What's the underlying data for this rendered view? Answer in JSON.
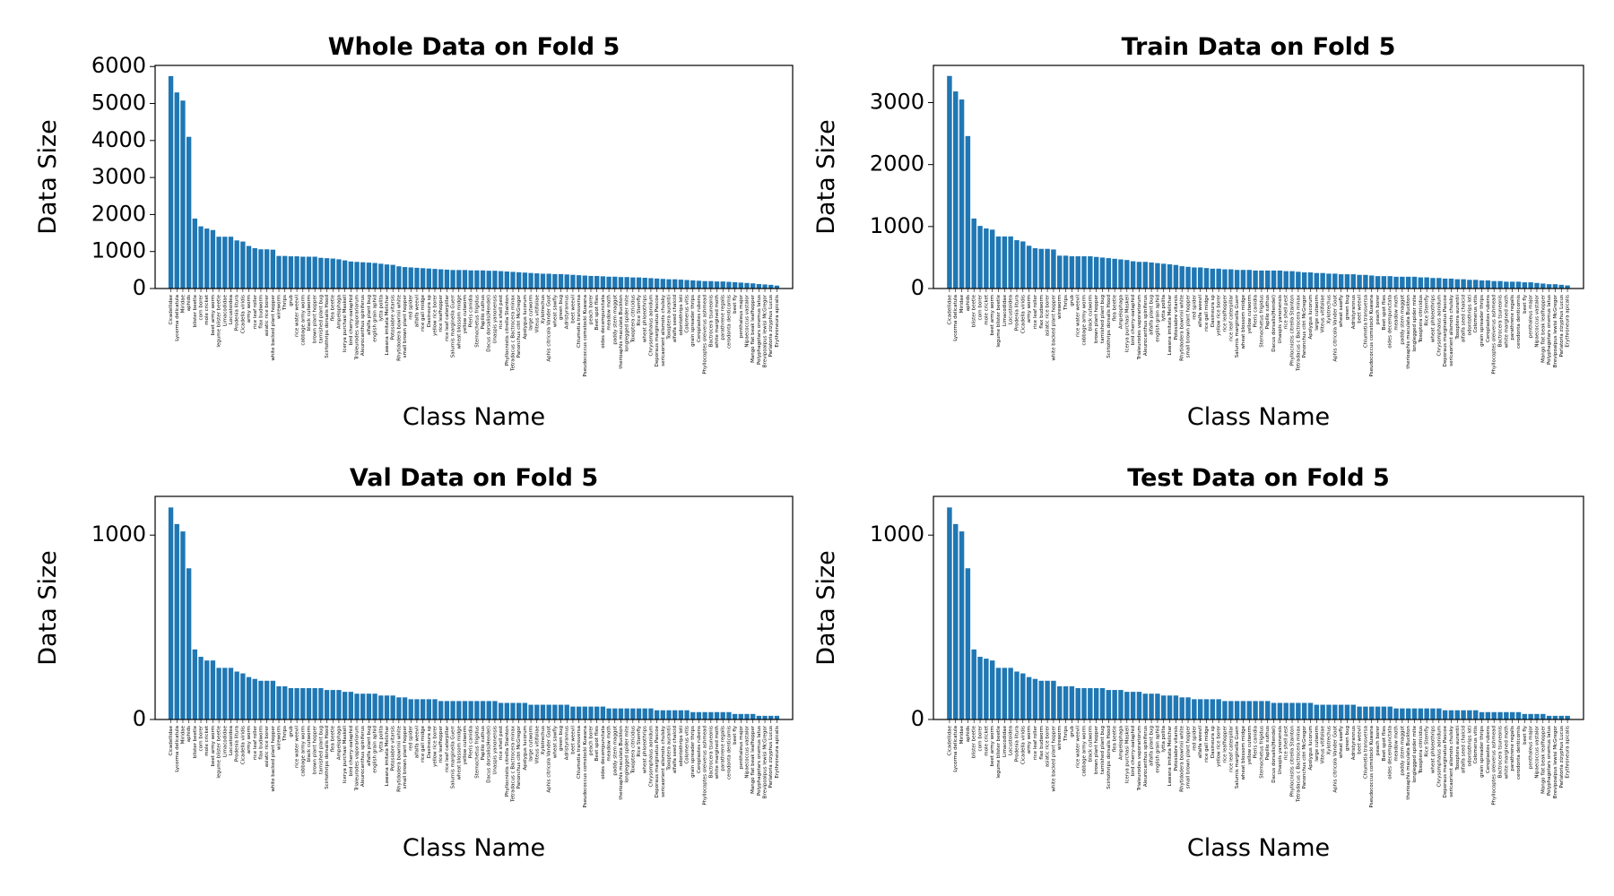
{
  "chart_data": [
    {
      "type": "bar",
      "title": "Whole Data on Fold 5",
      "x_label": "Class Name",
      "y_label": "Data Size",
      "color": "#1f77b4",
      "categories": [
        "Cicadellidae",
        "Lycorma delicatula",
        "Miridae",
        "aphids",
        "blister beetle",
        "corn borer",
        "mole cricket",
        "beet army worm",
        "legume blister beetle",
        "Limacodidae",
        "Locustoidea",
        "Prodenia litura",
        "Cicadella viridis",
        "army worm",
        "rice leaf roller",
        "flax budworm",
        "asiatic rice borer",
        "white backed plant hopper",
        "wireworm",
        "Thrips",
        "grub",
        "rice water weevil",
        "cabbage army worm",
        "black cutworm",
        "brown plant hopper",
        "tarnished plant bug",
        "Scirtothrips dorsalis Hood",
        "flea beetle",
        "Ampelophaga",
        "Icerya purchasi Maskell",
        "bird cherry-oataphid",
        "Trialeurodes vaporariorum",
        "Aleurocanthus spiniferus",
        "alfalfa plant bug",
        "english grain aphid",
        "lytta polita",
        "Lawana imitata Melichar",
        "Potosiabre vitarsis",
        "Rhytidodera bowrinii white",
        "small brown plant hopper",
        "red spider",
        "alfalfa weevil",
        "rice gall midge",
        "Dasineura sp",
        "yellow rice borer",
        "rice leafhopper",
        "rice leaf caterpillar",
        "Salurnis marginella Guerr",
        "wheat blossom midge",
        "yellow cutworm",
        "Pieris canidia",
        "Sternochetus frigidus",
        "Papilio xuthus",
        "Dacus dorsalis(Hendel)",
        "Unaspis yanonensis",
        "rice shell pest",
        "Phyllocnistis citrella Stainton",
        "Tetradacus c Bactrocera minax",
        "Panonchus citri McGregor",
        "Apolygus lucorum",
        "large cutworm",
        "Viteus vitifoliae",
        "Xylotrechus",
        "Aphis citricola Vander Goot",
        "wheat sawfly",
        "green bug",
        "Adristyrannus",
        "beet weevil",
        "Chlumetia transversa",
        "Pseudococcus comstocki Kuwana",
        "peach borer",
        "Beet spot flies",
        "oides decempunctata",
        "meadow moth",
        "paddy stem maggot",
        "therioaphis maculata Buckton",
        "longlegged spider mite",
        "Toxoptera citricidus",
        "Rice Stemfly",
        "wheat phloeothrips",
        "Chrysomphalus aonidum",
        "Deporaus marginatus Pascoe",
        "sericaorient alismots chulsky",
        "Toxoptera aurantii",
        "alfalfa seed chalcid",
        "odontothrips loti",
        "Colomerus vitis",
        "grain spreader thrips",
        "Ceroplastes rubens",
        "Phyllocoptes oleiverus ashmead",
        "Bactrocera tsuneonis",
        "white margined moth",
        "parathrene regalis",
        "cerodonta denticornis",
        "beet fly",
        "penthaleus major",
        "Nipaecoccus vastalor",
        "Mango flat beak leafhopper",
        "Polyphagotars onemus latus",
        "Brevipoalpus lewisi McGregor",
        "Parlatoria zizyphus Lucus",
        "Erythroneura apicalis"
      ],
      "values": [
        5740,
        5300,
        5080,
        4100,
        1890,
        1680,
        1620,
        1580,
        1400,
        1400,
        1400,
        1300,
        1270,
        1150,
        1090,
        1060,
        1060,
        1050,
        880,
        880,
        870,
        870,
        860,
        860,
        860,
        830,
        820,
        810,
        790,
        760,
        730,
        720,
        710,
        700,
        690,
        670,
        650,
        640,
        600,
        580,
        570,
        560,
        550,
        540,
        530,
        520,
        510,
        500,
        500,
        500,
        490,
        490,
        490,
        480,
        480,
        470,
        460,
        450,
        440,
        430,
        420,
        410,
        400,
        400,
        390,
        390,
        380,
        370,
        360,
        350,
        340,
        340,
        330,
        320,
        320,
        310,
        310,
        300,
        300,
        290,
        280,
        270,
        260,
        250,
        250,
        240,
        230,
        220,
        210,
        200,
        200,
        190,
        190,
        180,
        170,
        160,
        150,
        140,
        120,
        110,
        100,
        80
      ],
      "ylim": [
        0,
        6030
      ],
      "yticks": [
        0,
        1000,
        2000,
        3000,
        4000,
        5000,
        6000
      ]
    },
    {
      "type": "bar",
      "title": "Train Data on Fold 5",
      "x_label": "Class Name",
      "y_label": "Data Size",
      "color": "#1f77b4",
      "categories": [
        "Cicadellidae",
        "Lycorma delicatula",
        "Miridae",
        "aphids",
        "blister beetle",
        "corn borer",
        "mole cricket",
        "beet army worm",
        "legume blister beetle",
        "Limacodidae",
        "Locustoidea",
        "Prodenia litura",
        "Cicadella viridis",
        "army worm",
        "rice leaf roller",
        "flax budworm",
        "asiatic rice borer",
        "white backed plant hopper",
        "wireworm",
        "Thrips",
        "grub",
        "rice water weevil",
        "cabbage army worm",
        "black cutworm",
        "brown plant hopper",
        "tarnished plant bug",
        "Scirtothrips dorsalis Hood",
        "flea beetle",
        "Ampelophaga",
        "Icerya purchasi Maskell",
        "bird cherry-oataphid",
        "Trialeurodes vaporariorum",
        "Aleurocanthus spiniferus",
        "alfalfa plant bug",
        "english grain aphid",
        "lytta polita",
        "Lawana imitata Melichar",
        "Potosiabre vitarsis",
        "Rhytidodera bowrinii white",
        "small brown plant hopper",
        "red spider",
        "alfalfa weevil",
        "rice gall midge",
        "Dasineura sp",
        "yellow rice borer",
        "rice leafhopper",
        "rice leaf caterpillar",
        "Salurnis marginella Guerr",
        "wheat blossom midge",
        "yellow cutworm",
        "Pieris canidia",
        "Sternochetus frigidus",
        "Papilio xuthus",
        "Dacus dorsalis(Hendel)",
        "Unaspis yanonensis",
        "rice shell pest",
        "Phyllocnistis citrella Stainton",
        "Tetradacus c Bactrocera minax",
        "Panonchus citri McGregor",
        "Apolygus lucorum",
        "large cutworm",
        "Viteus vitifoliae",
        "Xylotrechus",
        "Aphis citricola Vander Goot",
        "wheat sawfly",
        "green bug",
        "Adristyrannus",
        "beet weevil",
        "Chlumetia transversa",
        "Pseudococcus comstocki Kuwana",
        "peach borer",
        "Beet spot flies",
        "oides decempunctata",
        "meadow moth",
        "paddy stem maggot",
        "therioaphis maculata Buckton",
        "longlegged spider mite",
        "Toxoptera citricidus",
        "Rice Stemfly",
        "wheat phloeothrips",
        "Chrysomphalus aonidum",
        "Deporaus marginatus Pascoe",
        "sericaorient alismots chulsky",
        "Toxoptera aurantii",
        "alfalfa seed chalcid",
        "odontothrips loti",
        "Colomerus vitis",
        "grain spreader thrips",
        "Ceroplastes rubens",
        "Phyllocoptes oleiverus ashmead",
        "Bactrocera tsuneonis",
        "white margined moth",
        "parathrene regalis",
        "cerodonta denticornis",
        "beet fly",
        "penthaleus major",
        "Nipaecoccus vastalor",
        "Mango flat beak leafhopper",
        "Polyphagotars onemus latus",
        "Brevipoalpus lewisi McGregor",
        "Parlatoria zizyphus Lucus",
        "Erythroneura apicalis"
      ],
      "values": [
        3430,
        3180,
        3050,
        2460,
        1130,
        1010,
        970,
        950,
        840,
        840,
        840,
        780,
        760,
        690,
        650,
        640,
        640,
        630,
        530,
        530,
        520,
        520,
        520,
        520,
        510,
        500,
        490,
        480,
        470,
        460,
        440,
        430,
        430,
        420,
        410,
        400,
        390,
        380,
        360,
        350,
        340,
        340,
        330,
        320,
        320,
        310,
        310,
        300,
        300,
        300,
        290,
        290,
        290,
        290,
        290,
        280,
        280,
        270,
        260,
        260,
        250,
        250,
        240,
        240,
        230,
        230,
        230,
        220,
        220,
        210,
        200,
        200,
        200,
        190,
        190,
        190,
        190,
        180,
        180,
        170,
        170,
        160,
        160,
        150,
        150,
        140,
        140,
        130,
        130,
        120,
        120,
        110,
        110,
        110,
        100,
        100,
        90,
        80,
        70,
        70,
        60,
        50
      ],
      "ylim": [
        0,
        3600
      ],
      "yticks": [
        0,
        1000,
        2000,
        3000
      ]
    },
    {
      "type": "bar",
      "title": "Val Data on Fold 5",
      "x_label": "Class Name",
      "y_label": "Data Size",
      "color": "#1f77b4",
      "categories": [
        "Cicadellidae",
        "Lycorma delicatula",
        "Miridae",
        "aphids",
        "blister beetle",
        "corn borer",
        "mole cricket",
        "beet army worm",
        "legume blister beetle",
        "Limacodidae",
        "Locustoidea",
        "Prodenia litura",
        "Cicadella viridis",
        "army worm",
        "rice leaf roller",
        "flax budworm",
        "asiatic rice borer",
        "white backed plant hopper",
        "wireworm",
        "Thrips",
        "grub",
        "rice water weevil",
        "cabbage army worm",
        "black cutworm",
        "brown plant hopper",
        "tarnished plant bug",
        "Scirtothrips dorsalis Hood",
        "flea beetle",
        "Ampelophaga",
        "Icerya purchasi Maskell",
        "bird cherry-oataphid",
        "Trialeurodes vaporariorum",
        "Aleurocanthus spiniferus",
        "alfalfa plant bug",
        "english grain aphid",
        "lytta polita",
        "Lawana imitata Melichar",
        "Potosiabre vitarsis",
        "Rhytidodera bowrinii white",
        "small brown plant hopper",
        "red spider",
        "alfalfa weevil",
        "rice gall midge",
        "Dasineura sp",
        "yellow rice borer",
        "rice leafhopper",
        "rice leaf caterpillar",
        "Salurnis marginella Guerr",
        "wheat blossom midge",
        "yellow cutworm",
        "Pieris canidia",
        "Sternochetus frigidus",
        "Papilio xuthus",
        "Dacus dorsalis(Hendel)",
        "Unaspis yanonensis",
        "rice shell pest",
        "Phyllocnistis citrella Stainton",
        "Tetradacus c Bactrocera minax",
        "Panonchus citri McGregor",
        "Apolygus lucorum",
        "large cutworm",
        "Viteus vitifoliae",
        "Xylotrechus",
        "Aphis citricola Vander Goot",
        "wheat sawfly",
        "green bug",
        "Adristyrannus",
        "beet weevil",
        "Chlumetia transversa",
        "Pseudococcus comstocki Kuwana",
        "peach borer",
        "Beet spot flies",
        "oides decempunctata",
        "meadow moth",
        "paddy stem maggot",
        "therioaphis maculata Buckton",
        "longlegged spider mite",
        "Toxoptera citricidus",
        "Rice Stemfly",
        "wheat phloeothrips",
        "Chrysomphalus aonidum",
        "Deporaus marginatus Pascoe",
        "sericaorient alismots chulsky",
        "Toxoptera aurantii",
        "alfalfa seed chalcid",
        "odontothrips loti",
        "Colomerus vitis",
        "grain spreader thrips",
        "Ceroplastes rubens",
        "Phyllocoptes oleiverus ashmead",
        "Bactrocera tsuneonis",
        "white margined moth",
        "parathrene regalis",
        "cerodonta denticornis",
        "beet fly",
        "penthaleus major",
        "Nipaecoccus vastalor",
        "Mango flat beak leafhopper",
        "Polyphagotars onemus latus",
        "Brevipoalpus lewisi McGregor",
        "Parlatoria zizyphus Lucus",
        "Erythroneura apicalis"
      ],
      "values": [
        1150,
        1060,
        1020,
        820,
        380,
        340,
        320,
        320,
        280,
        280,
        280,
        260,
        250,
        230,
        220,
        210,
        210,
        210,
        180,
        180,
        170,
        170,
        170,
        170,
        170,
        170,
        160,
        160,
        160,
        150,
        150,
        140,
        140,
        140,
        140,
        130,
        130,
        130,
        120,
        120,
        110,
        110,
        110,
        110,
        110,
        100,
        100,
        100,
        100,
        100,
        100,
        100,
        100,
        100,
        100,
        90,
        90,
        90,
        90,
        90,
        80,
        80,
        80,
        80,
        80,
        80,
        80,
        70,
        70,
        70,
        70,
        70,
        70,
        60,
        60,
        60,
        60,
        60,
        60,
        60,
        60,
        50,
        50,
        50,
        50,
        50,
        50,
        40,
        40,
        40,
        40,
        40,
        40,
        40,
        30,
        30,
        30,
        30,
        20,
        20,
        20,
        20
      ],
      "ylim": [
        0,
        1210
      ],
      "yticks": [
        0,
        1000
      ]
    },
    {
      "type": "bar",
      "title": "Test Data on Fold 5",
      "x_label": "Class Name",
      "y_label": "Data Size",
      "color": "#1f77b4",
      "categories": [
        "Cicadellidae",
        "Lycorma delicatula",
        "Miridae",
        "aphids",
        "blister beetle",
        "corn borer",
        "mole cricket",
        "beet army worm",
        "legume blister beetle",
        "Limacodidae",
        "Locustoidea",
        "Prodenia litura",
        "Cicadella viridis",
        "army worm",
        "rice leaf roller",
        "flax budworm",
        "asiatic rice borer",
        "white backed plant hopper",
        "wireworm",
        "Thrips",
        "grub",
        "rice water weevil",
        "cabbage army worm",
        "black cutworm",
        "brown plant hopper",
        "tarnished plant bug",
        "Scirtothrips dorsalis Hood",
        "flea beetle",
        "Ampelophaga",
        "Icerya purchasi Maskell",
        "bird cherry-oataphid",
        "Trialeurodes vaporariorum",
        "Aleurocanthus spiniferus",
        "alfalfa plant bug",
        "english grain aphid",
        "lytta polita",
        "Lawana imitata Melichar",
        "Potosiabre vitarsis",
        "Rhytidodera bowrinii white",
        "small brown plant hopper",
        "red spider",
        "alfalfa weevil",
        "rice gall midge",
        "Dasineura sp",
        "yellow rice borer",
        "rice leafhopper",
        "rice leaf caterpillar",
        "Salurnis marginella Guerr",
        "wheat blossom midge",
        "yellow cutworm",
        "Pieris canidia",
        "Sternochetus frigidus",
        "Papilio xuthus",
        "Dacus dorsalis(Hendel)",
        "Unaspis yanonensis",
        "rice shell pest",
        "Phyllocnistis citrella Stainton",
        "Tetradacus c Bactrocera minax",
        "Panonchus citri McGregor",
        "Apolygus lucorum",
        "large cutworm",
        "Viteus vitifoliae",
        "Xylotrechus",
        "Aphis citricola Vander Goot",
        "wheat sawfly",
        "green bug",
        "Adristyrannus",
        "beet weevil",
        "Chlumetia transversa",
        "Pseudococcus comstocki Kuwana",
        "peach borer",
        "Beet spot flies",
        "oides decempunctata",
        "meadow moth",
        "paddy stem maggot",
        "therioaphis maculata Buckton",
        "longlegged spider mite",
        "Toxoptera citricidus",
        "Rice Stemfly",
        "wheat phloeothrips",
        "Chrysomphalus aonidum",
        "Deporaus marginatus Pascoe",
        "sericaorient alismots chulsky",
        "Toxoptera aurantii",
        "alfalfa seed chalcid",
        "odontothrips loti",
        "Colomerus vitis",
        "grain spreader thrips",
        "Ceroplastes rubens",
        "Phyllocoptes oleiverus ashmead",
        "Bactrocera tsuneonis",
        "white margined moth",
        "parathrene regalis",
        "cerodonta denticornis",
        "beet fly",
        "penthaleus major",
        "Nipaecoccus vastalor",
        "Mango flat beak leafhopper",
        "Polyphagotars onemus latus",
        "Brevipoalpus lewisi McGregor",
        "Parlatoria zizyphus Lucus",
        "Erythroneura apicalis"
      ],
      "values": [
        1150,
        1060,
        1020,
        820,
        380,
        340,
        330,
        320,
        280,
        280,
        280,
        260,
        250,
        230,
        220,
        210,
        210,
        210,
        180,
        180,
        180,
        170,
        170,
        170,
        170,
        170,
        160,
        160,
        160,
        150,
        150,
        150,
        140,
        140,
        140,
        130,
        130,
        130,
        120,
        120,
        110,
        110,
        110,
        110,
        110,
        100,
        100,
        100,
        100,
        100,
        100,
        100,
        100,
        90,
        90,
        90,
        90,
        90,
        90,
        90,
        80,
        80,
        80,
        80,
        80,
        80,
        80,
        70,
        70,
        70,
        70,
        70,
        70,
        60,
        60,
        60,
        60,
        60,
        60,
        60,
        60,
        50,
        50,
        50,
        50,
        50,
        50,
        40,
        40,
        40,
        40,
        40,
        40,
        40,
        30,
        30,
        30,
        30,
        20,
        20,
        20,
        20
      ],
      "ylim": [
        0,
        1210
      ],
      "yticks": [
        0,
        1000
      ]
    }
  ]
}
